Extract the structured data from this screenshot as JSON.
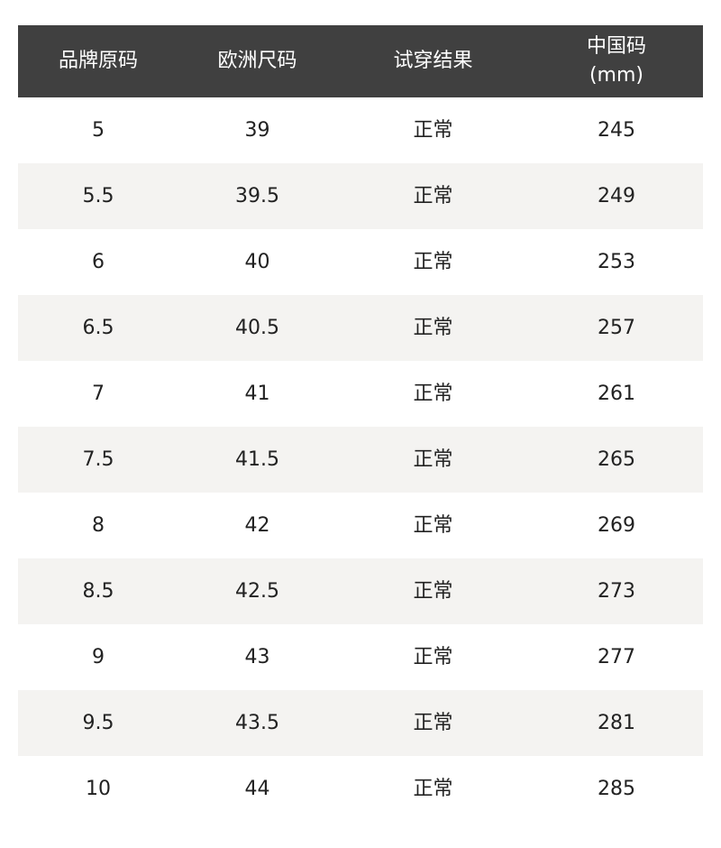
{
  "headers": [
    "品牌原码",
    "欧洲尺码",
    "试穿结果",
    "中国码\n(mm)"
  ],
  "rows": [
    [
      "5",
      "39",
      "正常",
      "245"
    ],
    [
      "5.5",
      "39.5",
      "正常",
      "249"
    ],
    [
      "6",
      "40",
      "正常",
      "253"
    ],
    [
      "6.5",
      "40.5",
      "正常",
      "257"
    ],
    [
      "7",
      "41",
      "正常",
      "261"
    ],
    [
      "7.5",
      "41.5",
      "正常",
      "265"
    ],
    [
      "8",
      "42",
      "正常",
      "269"
    ],
    [
      "8.5",
      "42.5",
      "正常",
      "273"
    ],
    [
      "9",
      "43",
      "正常",
      "277"
    ],
    [
      "9.5",
      "43.5",
      "正常",
      "281"
    ],
    [
      "10",
      "44",
      "正常",
      "285"
    ]
  ],
  "colors": {
    "header_bg": "#404040",
    "alt_row_bg": "#f4f3f1"
  }
}
